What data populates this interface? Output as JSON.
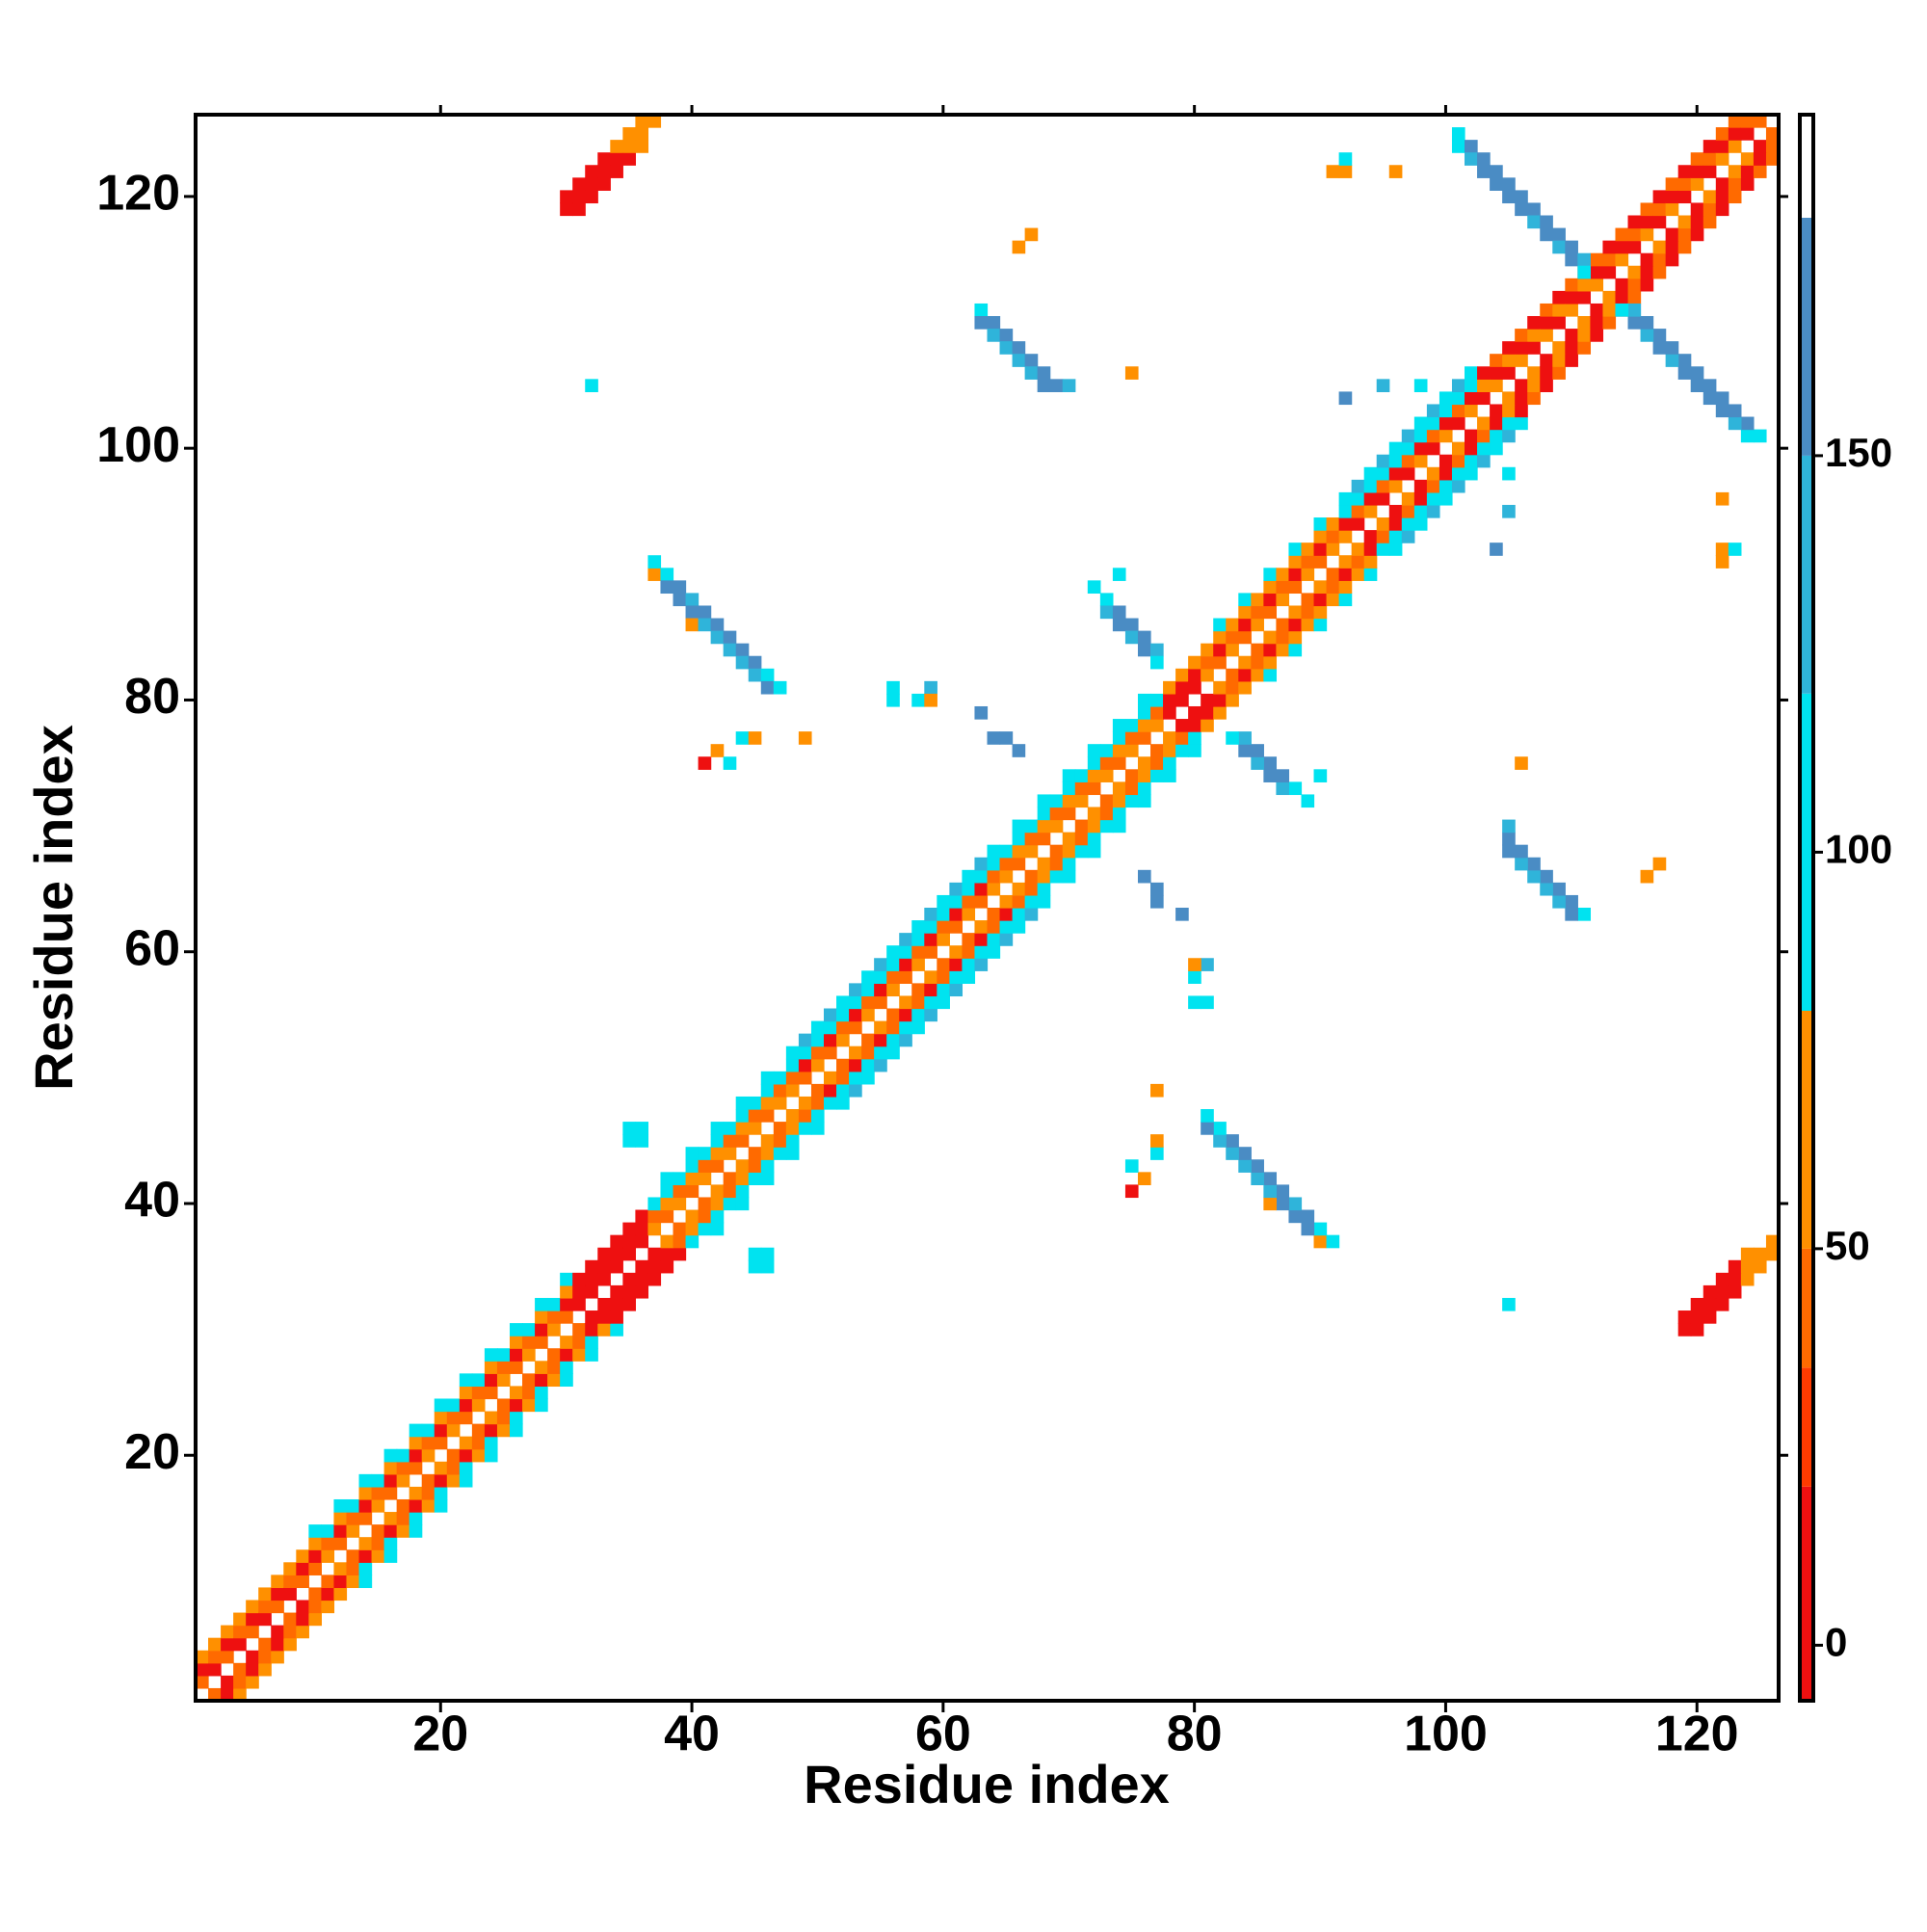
{
  "chart_data": {
    "type": "heatmap",
    "symmetric": true,
    "x_label": "Residue index",
    "y_label": "Residue index",
    "xlim": [
      0.5,
      126.5
    ],
    "ylim": [
      0.5,
      126.5
    ],
    "xticks": [
      20,
      40,
      60,
      80,
      100,
      120
    ],
    "yticks": [
      20,
      40,
      60,
      80,
      100,
      120
    ],
    "x": [
      1,
      2,
      3,
      4,
      5,
      6,
      7,
      8,
      9,
      10,
      11,
      12,
      13,
      14,
      15,
      16,
      17,
      18,
      19,
      20,
      21,
      22,
      23,
      24,
      25,
      26,
      27,
      28,
      29,
      30,
      31,
      32,
      33,
      34,
      35,
      36,
      37,
      38,
      39,
      40,
      41,
      42,
      43,
      44,
      45,
      46,
      47,
      48,
      49,
      50,
      51,
      52,
      53,
      54,
      55,
      56,
      57,
      58,
      59,
      60,
      61,
      62,
      63,
      64,
      65,
      66,
      67,
      68,
      69,
      70,
      71,
      72,
      73,
      74,
      75,
      76,
      77,
      78,
      79,
      80,
      81,
      82,
      83,
      84,
      85,
      86,
      87,
      88,
      89,
      90,
      91,
      92,
      93,
      94,
      95,
      96,
      97,
      98,
      99,
      100,
      101,
      102,
      103,
      104,
      105,
      106,
      107,
      108,
      109,
      110,
      111,
      112,
      113,
      114,
      115,
      116,
      117,
      118,
      119,
      120,
      121,
      122,
      123,
      124,
      125
    ],
    "offsets": [
      1,
      2,
      3,
      4
    ],
    "band": [
      [
        40,
        10,
        60,
        null
      ],
      [
        10,
        40,
        60,
        null
      ],
      [
        40,
        10,
        60,
        null
      ],
      [
        10,
        40,
        60,
        null
      ],
      [
        40,
        10,
        60,
        null
      ],
      [
        10,
        40,
        60,
        null
      ],
      [
        40,
        10,
        60,
        null
      ],
      [
        10,
        40,
        60,
        null
      ],
      [
        40,
        10,
        60,
        null
      ],
      [
        40,
        10,
        60,
        100
      ],
      [
        60,
        40,
        100,
        null
      ],
      [
        40,
        10,
        60,
        100
      ],
      [
        60,
        40,
        100,
        null
      ],
      [
        40,
        10,
        60,
        100
      ],
      [
        60,
        40,
        100,
        null
      ],
      [
        40,
        10,
        60,
        100
      ],
      [
        60,
        40,
        100,
        null
      ],
      [
        40,
        10,
        60,
        100
      ],
      [
        60,
        40,
        100,
        null
      ],
      [
        40,
        10,
        60,
        100
      ],
      [
        60,
        40,
        100,
        null
      ],
      [
        40,
        10,
        60,
        100
      ],
      [
        60,
        40,
        100,
        null
      ],
      [
        40,
        10,
        60,
        100
      ],
      [
        60,
        40,
        100,
        null
      ],
      [
        40,
        10,
        60,
        100
      ],
      [
        60,
        40,
        100,
        null
      ],
      [
        40,
        10,
        60,
        100
      ],
      [
        60,
        40,
        100,
        null
      ],
      [
        40,
        10,
        60,
        100
      ],
      [
        10,
        10,
        15,
        null
      ],
      [
        10,
        10,
        15,
        null
      ],
      [
        10,
        10,
        15,
        null
      ],
      [
        10,
        10,
        15,
        null
      ],
      [
        10,
        10,
        15,
        null
      ],
      [
        10,
        10,
        15,
        null
      ],
      [
        60,
        40,
        100,
        null
      ],
      [
        40,
        60,
        100,
        100
      ],
      [
        60,
        40,
        100,
        null
      ],
      [
        40,
        60,
        100,
        100
      ],
      [
        60,
        40,
        100,
        null
      ],
      [
        40,
        60,
        100,
        100
      ],
      [
        60,
        40,
        100,
        null
      ],
      [
        40,
        60,
        100,
        100
      ],
      [
        60,
        40,
        100,
        null
      ],
      [
        40,
        60,
        100,
        100
      ],
      [
        60,
        40,
        100,
        null
      ],
      [
        60,
        40,
        100,
        100
      ],
      [
        40,
        10,
        100,
        140
      ],
      [
        60,
        40,
        100,
        100
      ],
      [
        40,
        10,
        100,
        140
      ],
      [
        60,
        40,
        100,
        100
      ],
      [
        40,
        10,
        100,
        140
      ],
      [
        60,
        40,
        100,
        100
      ],
      [
        40,
        10,
        100,
        140
      ],
      [
        60,
        40,
        100,
        100
      ],
      [
        40,
        10,
        100,
        140
      ],
      [
        60,
        40,
        100,
        100
      ],
      [
        40,
        10,
        100,
        140
      ],
      [
        60,
        40,
        100,
        100
      ],
      [
        40,
        10,
        100,
        140
      ],
      [
        60,
        40,
        100,
        100
      ],
      [
        40,
        10,
        100,
        140
      ],
      [
        60,
        40,
        100,
        100
      ],
      [
        60,
        40,
        100,
        null
      ],
      [
        40,
        60,
        100,
        100
      ],
      [
        60,
        40,
        100,
        null
      ],
      [
        40,
        60,
        100,
        100
      ],
      [
        60,
        40,
        100,
        null
      ],
      [
        40,
        60,
        100,
        100
      ],
      [
        60,
        40,
        100,
        null
      ],
      [
        40,
        60,
        100,
        100
      ],
      [
        60,
        40,
        100,
        null
      ],
      [
        40,
        60,
        100,
        100
      ],
      [
        60,
        40,
        100,
        null
      ],
      [
        40,
        60,
        100,
        100
      ],
      [
        60,
        40,
        100,
        null
      ],
      [
        10,
        10,
        60,
        null
      ],
      [
        10,
        10,
        60,
        null
      ],
      [
        10,
        10,
        60,
        null
      ],
      [
        60,
        40,
        60,
        null
      ],
      [
        40,
        10,
        60,
        100
      ],
      [
        60,
        40,
        60,
        null
      ],
      [
        40,
        10,
        60,
        100
      ],
      [
        60,
        40,
        60,
        null
      ],
      [
        40,
        10,
        60,
        100
      ],
      [
        60,
        40,
        60,
        null
      ],
      [
        40,
        10,
        60,
        100
      ],
      [
        60,
        40,
        60,
        null
      ],
      [
        40,
        10,
        60,
        100
      ],
      [
        60,
        40,
        60,
        null
      ],
      [
        60,
        10,
        100,
        100
      ],
      [
        10,
        40,
        100,
        140
      ],
      [
        60,
        10,
        100,
        100
      ],
      [
        10,
        40,
        100,
        140
      ],
      [
        60,
        10,
        100,
        100
      ],
      [
        10,
        40,
        100,
        140
      ],
      [
        60,
        10,
        100,
        100
      ],
      [
        10,
        40,
        100,
        140
      ],
      [
        60,
        10,
        100,
        100
      ],
      [
        10,
        40,
        100,
        140
      ],
      [
        60,
        10,
        100,
        100
      ],
      [
        10,
        60,
        10,
        null
      ],
      [
        60,
        10,
        40,
        null
      ],
      [
        10,
        60,
        10,
        null
      ],
      [
        60,
        10,
        40,
        null
      ],
      [
        10,
        60,
        10,
        null
      ],
      [
        60,
        10,
        40,
        null
      ],
      [
        10,
        60,
        10,
        null
      ],
      [
        60,
        10,
        40,
        null
      ],
      [
        10,
        60,
        10,
        null
      ],
      [
        60,
        10,
        40,
        null
      ],
      [
        10,
        40,
        15,
        null
      ],
      [
        60,
        10,
        40,
        null
      ],
      [
        10,
        40,
        15,
        null
      ],
      [
        60,
        10,
        40,
        null
      ],
      [
        10,
        40,
        15,
        null
      ],
      [
        60,
        10,
        40,
        null
      ],
      [
        10,
        40,
        15,
        null
      ],
      [
        60,
        10,
        40,
        null
      ],
      [
        10,
        40,
        15,
        null
      ],
      [
        60,
        10,
        40,
        null
      ],
      [
        60,
        10,
        40,
        null
      ],
      [
        10,
        40,
        null,
        null
      ],
      [
        40,
        null,
        null,
        null
      ]
    ],
    "cells": [
      [
        101,
        125,
        100
      ],
      [
        101,
        124,
        100
      ],
      [
        102,
        124,
        160
      ],
      [
        102,
        123,
        140
      ],
      [
        103,
        123,
        160
      ],
      [
        103,
        122,
        160
      ],
      [
        104,
        122,
        160
      ],
      [
        104,
        121,
        150
      ],
      [
        105,
        121,
        160
      ],
      [
        105,
        120,
        150
      ],
      [
        106,
        120,
        160
      ],
      [
        106,
        119,
        150
      ],
      [
        107,
        119,
        160
      ],
      [
        107,
        118,
        140
      ],
      [
        108,
        118,
        160
      ],
      [
        108,
        117,
        150
      ],
      [
        109,
        117,
        160
      ],
      [
        109,
        116,
        140
      ],
      [
        110,
        116,
        160
      ],
      [
        110,
        115,
        150
      ],
      [
        111,
        115,
        140
      ],
      [
        111,
        114,
        100
      ],
      [
        72,
        89,
        100
      ],
      [
        74,
        90,
        100
      ],
      [
        73,
        88,
        100
      ],
      [
        73,
        87,
        140
      ],
      [
        74,
        87,
        160
      ],
      [
        74,
        86,
        160
      ],
      [
        75,
        86,
        160
      ],
      [
        75,
        85,
        140
      ],
      [
        76,
        85,
        160
      ],
      [
        76,
        84,
        160
      ],
      [
        77,
        84,
        140
      ],
      [
        77,
        83,
        100
      ],
      [
        37,
        90,
        60
      ],
      [
        37,
        91,
        100
      ],
      [
        38,
        90,
        100
      ],
      [
        38,
        89,
        160
      ],
      [
        39,
        89,
        160
      ],
      [
        39,
        88,
        160
      ],
      [
        40,
        88,
        140
      ],
      [
        40,
        87,
        160
      ],
      [
        40,
        86,
        60
      ],
      [
        41,
        87,
        160
      ],
      [
        41,
        86,
        140
      ],
      [
        42,
        86,
        160
      ],
      [
        42,
        85,
        140
      ],
      [
        43,
        85,
        160
      ],
      [
        43,
        84,
        140
      ],
      [
        44,
        84,
        160
      ],
      [
        44,
        83,
        140
      ],
      [
        45,
        83,
        160
      ],
      [
        45,
        82,
        140
      ],
      [
        46,
        82,
        100
      ],
      [
        46,
        81,
        160
      ],
      [
        47,
        81,
        100
      ],
      [
        63,
        111,
        100
      ],
      [
        63,
        110,
        160
      ],
      [
        64,
        110,
        160
      ],
      [
        64,
        109,
        140
      ],
      [
        65,
        109,
        160
      ],
      [
        65,
        108,
        140
      ],
      [
        66,
        108,
        160
      ],
      [
        66,
        107,
        140
      ],
      [
        67,
        107,
        160
      ],
      [
        67,
        106,
        140
      ],
      [
        68,
        106,
        160
      ],
      [
        68,
        105,
        160
      ],
      [
        69,
        105,
        160
      ],
      [
        70,
        105,
        140
      ],
      [
        30,
        119,
        15
      ],
      [
        30,
        120,
        10
      ],
      [
        31,
        119,
        10
      ],
      [
        31,
        120,
        10
      ],
      [
        31,
        121,
        10
      ],
      [
        32,
        120,
        10
      ],
      [
        32,
        121,
        10
      ],
      [
        32,
        122,
        15
      ],
      [
        33,
        121,
        10
      ],
      [
        33,
        122,
        10
      ],
      [
        33,
        123,
        15
      ],
      [
        34,
        122,
        15
      ],
      [
        34,
        123,
        15
      ],
      [
        34,
        124,
        60
      ],
      [
        35,
        123,
        15
      ],
      [
        35,
        124,
        60
      ],
      [
        35,
        125,
        60
      ],
      [
        36,
        124,
        60
      ],
      [
        36,
        125,
        60
      ],
      [
        36,
        126,
        60
      ],
      [
        37,
        126,
        60
      ],
      [
        32,
        105,
        100
      ],
      [
        35,
        45,
        100
      ],
      [
        36,
        45,
        100
      ],
      [
        35,
        46,
        100
      ],
      [
        36,
        46,
        100
      ],
      [
        56,
        81,
        100
      ],
      [
        56,
        80,
        100
      ],
      [
        58,
        80,
        100
      ],
      [
        59,
        81,
        140
      ],
      [
        59,
        80,
        60
      ],
      [
        63,
        79,
        150
      ],
      [
        64,
        77,
        150
      ],
      [
        65,
        77,
        150
      ],
      [
        66,
        76,
        150
      ],
      [
        41,
        75,
        10
      ],
      [
        42,
        76,
        60
      ],
      [
        43,
        75,
        100
      ],
      [
        44,
        77,
        100
      ],
      [
        45,
        77,
        60
      ],
      [
        49,
        77,
        60
      ],
      [
        75,
        106,
        60
      ],
      [
        91,
        122,
        60
      ],
      [
        92,
        122,
        60
      ],
      [
        92,
        123,
        100
      ],
      [
        96,
        122,
        60
      ],
      [
        66,
        116,
        60
      ],
      [
        67,
        117,
        60
      ],
      [
        92,
        104,
        150
      ],
      [
        95,
        105,
        140
      ],
      [
        98,
        105,
        100
      ]
    ],
    "colorbar": {
      "clim": [
        -7,
        193
      ],
      "levels": [
        -7,
        20,
        35,
        50,
        80,
        120,
        150,
        180,
        193
      ],
      "colors": [
        "#ee1010",
        "#ff3b00",
        "#ff6a00",
        "#ff9000",
        "#00e3f0",
        "#2fb4da",
        "#4a8cc4",
        "#ffffff"
      ],
      "ticks": [
        0,
        50,
        100,
        150
      ]
    }
  }
}
